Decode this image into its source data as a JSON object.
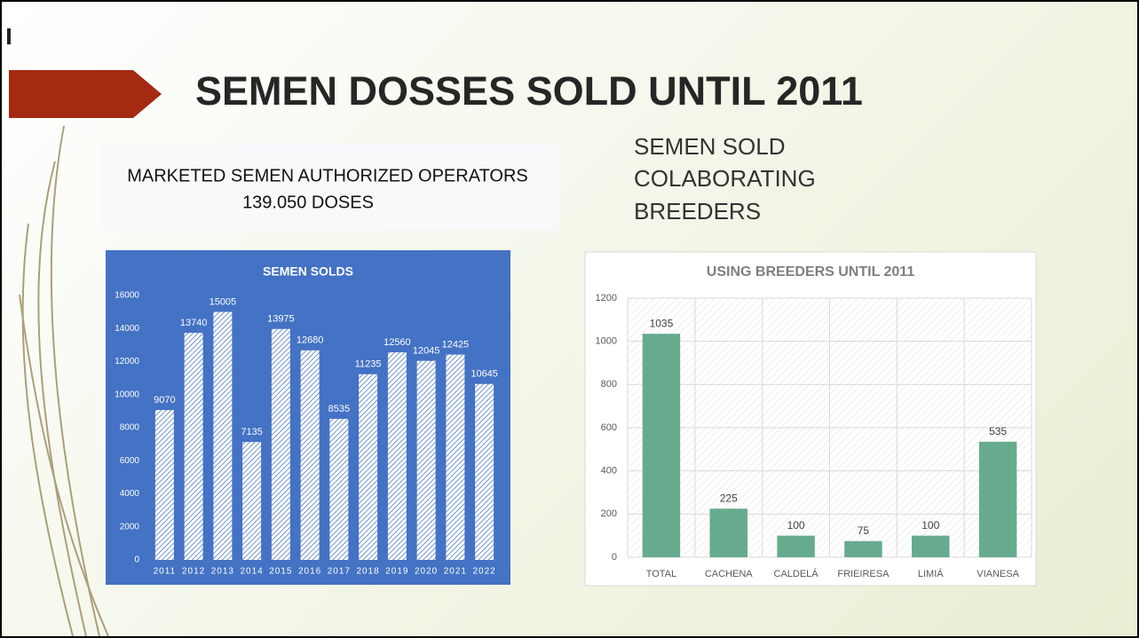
{
  "slide": {
    "title": "SEMEN DOSSES SOLD UNTIL 2011",
    "box_lines": [
      "MARKETED SEMEN AUTHORIZED OPERATORS",
      "139.050 DOSES"
    ],
    "side_lines": [
      "SEMEN SOLD",
      "COLABORATING",
      "BREEDERS"
    ]
  },
  "chart_data": [
    {
      "type": "bar",
      "title": "SEMEN SOLDS",
      "categories": [
        "2011",
        "2012",
        "2013",
        "2014",
        "2015",
        "2016",
        "2017",
        "2018",
        "2019",
        "2020",
        "2021",
        "2022"
      ],
      "values": [
        9070,
        13740,
        15005,
        7135,
        13975,
        12680,
        8535,
        11235,
        12560,
        12045,
        12425,
        10645
      ],
      "color": "#ffffff",
      "background": "#4472c4",
      "ylim": [
        0,
        16000
      ],
      "yticks": [
        0,
        2000,
        4000,
        6000,
        8000,
        10000,
        12000,
        14000,
        16000
      ],
      "grid": false
    },
    {
      "type": "bar",
      "title": "USING  BREEDERS  UNTIL 2011",
      "categories": [
        "TOTAL",
        "CACHENA",
        "CALDELÁ",
        "FRIEIRESA",
        "LIMIÁ",
        "VIANESA"
      ],
      "values": [
        1035,
        225,
        100,
        75,
        100,
        535
      ],
      "color": "#67ab8f",
      "background": "#ffffff",
      "ylim": [
        0,
        1200
      ],
      "yticks": [
        0,
        200,
        400,
        600,
        800,
        1000,
        1200
      ],
      "grid": true
    }
  ]
}
